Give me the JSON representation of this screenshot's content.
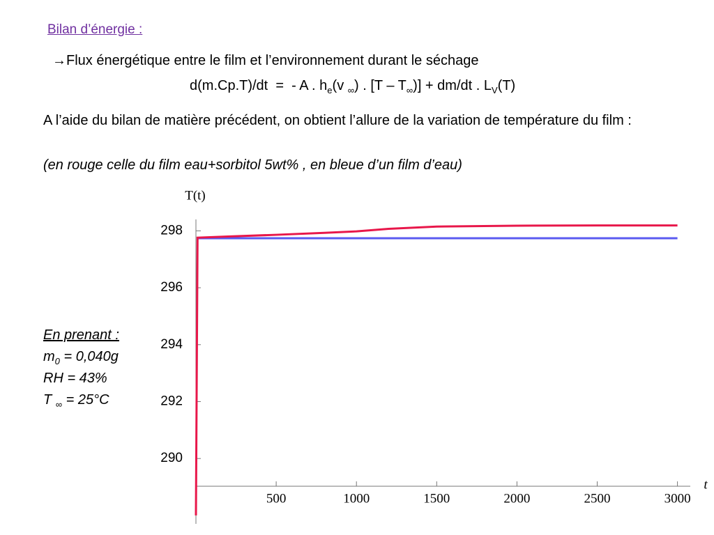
{
  "heading": "Bilan d’énergie :",
  "flux_line": "→Flux énergétique entre le film et l’environnement durant le séchage",
  "equation": [
    "d(m.Cp.T)/dt  =  - A . h",
    "e",
    "(v ",
    "∞",
    ") . [T – T",
    "∞",
    ")] + dm/dt . L",
    "V",
    "(T)"
  ],
  "paragraph": "A l’aide du bilan de matière précédent, on obtient l’allure de la variation de température du film :",
  "legend_note": "(en rouge celle du film eau+sorbitol 5wt% , en bleue d’un film d’eau)",
  "conditions": {
    "title": "En prenant :",
    "mass": [
      "m",
      "0",
      " = 0,040g"
    ],
    "rh": "RH = 43%",
    "temp": [
      "T ",
      "∞",
      " = 25°C"
    ]
  },
  "chart_data": {
    "type": "line",
    "y_label": "T(t)",
    "x_label": "t",
    "xlim": [
      0,
      3080
    ],
    "ylim": [
      287.9,
      298.4
    ],
    "xticks": [
      500,
      1000,
      1500,
      2000,
      2500,
      3000
    ],
    "yticks": [
      290,
      292,
      294,
      296,
      298
    ],
    "series": [
      {
        "color": "#5a5af0",
        "x": [
          8,
          3000
        ],
        "values": [
          297.74,
          297.74
        ]
      },
      {
        "color": "#e8174a",
        "x": [
          0,
          10,
          200,
          500,
          800,
          1000,
          1200,
          1500,
          2000,
          2500,
          3000
        ],
        "values": [
          288,
          297.76,
          297.8,
          297.86,
          297.93,
          297.98,
          298.07,
          298.15,
          298.18,
          298.19,
          298.19
        ]
      }
    ]
  }
}
